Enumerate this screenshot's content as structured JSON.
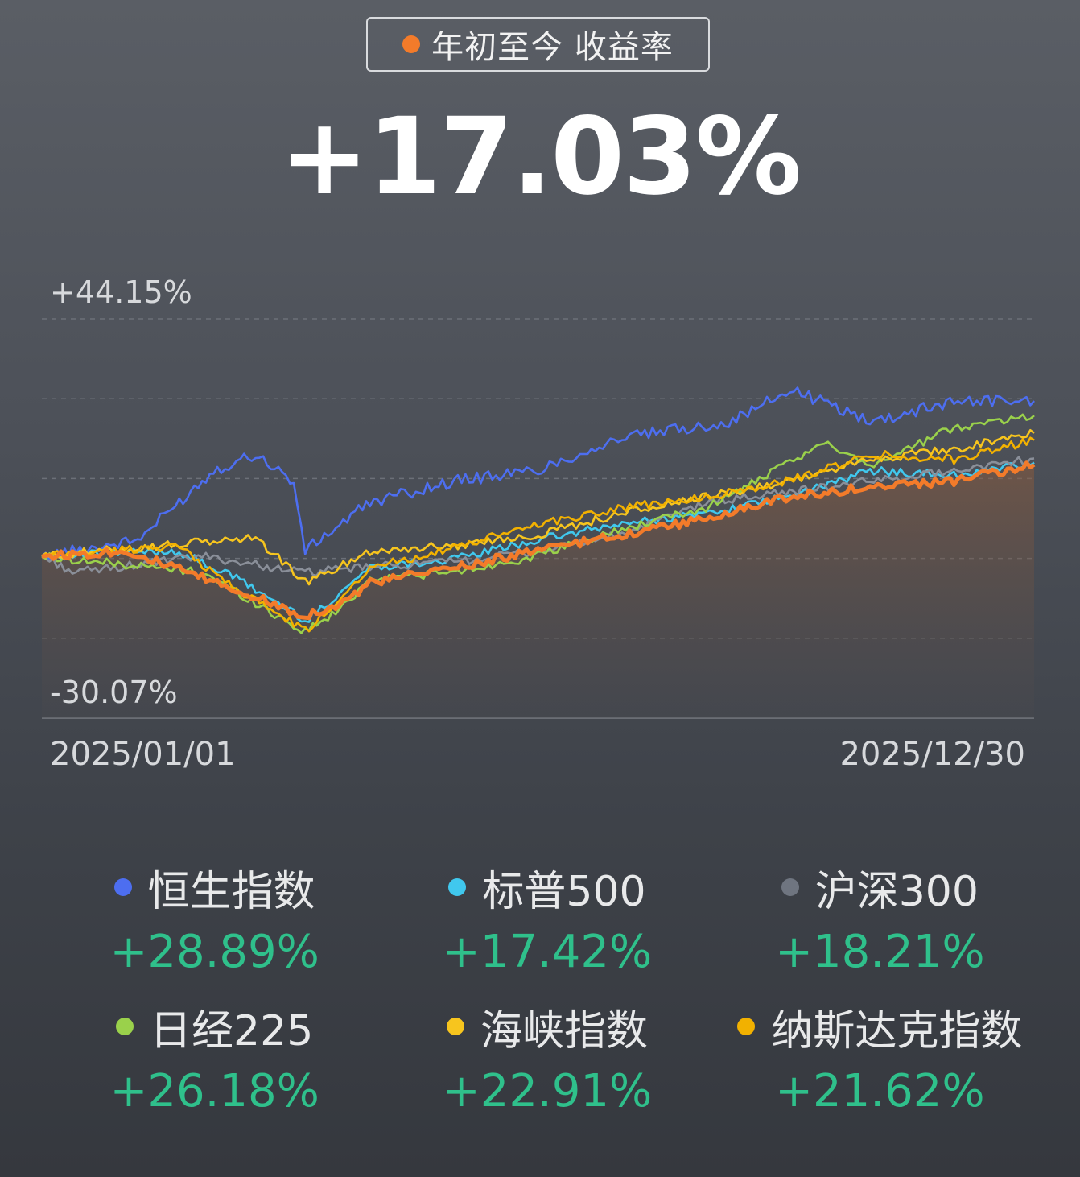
{
  "header": {
    "label": "年初至今 收益率",
    "value": "+17.03%",
    "dot_color": "#f37b2a"
  },
  "chart_data": {
    "type": "line",
    "ylim": [
      -30.07,
      44.15
    ],
    "y_top_label": "+44.15%",
    "y_bottom_label": "-30.07%",
    "x_start_label": "2025/01/01",
    "x_end_label": "2025/12/30",
    "x_range": [
      "2025/01/01",
      "2025/12/30"
    ],
    "grid": "dashed horizontal",
    "series": [
      {
        "name": "恒生指数",
        "color": "#4d6ef0",
        "x": [
          "2025/01/01",
          "2025/02/05",
          "2025/03/05",
          "2025/03/20",
          "2025/04/03",
          "2025/04/07",
          "2025/05/01",
          "2025/06/01",
          "2025/07/01",
          "2025/08/01",
          "2025/09/10",
          "2025/10/02",
          "2025/11/01",
          "2025/12/01",
          "2025/12/30"
        ],
        "values": [
          0.0,
          3.0,
          16.0,
          19.0,
          14.0,
          1.0,
          10.0,
          14.0,
          16.0,
          22.0,
          25.0,
          31.0,
          25.0,
          29.0,
          28.89
        ]
      },
      {
        "name": "标普500",
        "color": "#40c8ee",
        "x": [
          "2025/01/01",
          "2025/02/19",
          "2025/03/13",
          "2025/04/08",
          "2025/05/01",
          "2025/06/01",
          "2025/07/01",
          "2025/08/01",
          "2025/09/01",
          "2025/10/01",
          "2025/11/01",
          "2025/12/01",
          "2025/12/30"
        ],
        "values": [
          0.0,
          1.0,
          -4.0,
          -12.0,
          -2.0,
          -0.5,
          3.0,
          6.0,
          8.0,
          11.0,
          16.0,
          15.0,
          17.42
        ]
      },
      {
        "name": "沪深300",
        "color": "#8a8f99",
        "x": [
          "2025/01/01",
          "2025/01/13",
          "2025/03/01",
          "2025/04/07",
          "2025/05/01",
          "2025/06/01",
          "2025/07/01",
          "2025/08/01",
          "2025/09/01",
          "2025/10/01",
          "2025/11/01",
          "2025/12/01",
          "2025/12/30"
        ],
        "values": [
          0.0,
          -3.0,
          0.0,
          -3.0,
          -2.0,
          -1.0,
          1.0,
          4.0,
          10.0,
          12.0,
          14.0,
          16.0,
          18.21
        ]
      },
      {
        "name": "日经225",
        "color": "#9ad14b",
        "x": [
          "2025/01/01",
          "2025/03/01",
          "2025/04/07",
          "2025/04/20",
          "2025/05/01",
          "2025/06/01",
          "2025/07/01",
          "2025/08/01",
          "2025/09/01",
          "2025/10/15",
          "2025/11/01",
          "2025/12/01",
          "2025/12/30"
        ],
        "values": [
          0.0,
          -3.0,
          -14.0,
          -10.0,
          -4.0,
          -3.0,
          0.0,
          5.0,
          9.0,
          21.0,
          17.0,
          24.0,
          26.18
        ]
      },
      {
        "name": "海峡指数",
        "color": "#f7c51e",
        "x": [
          "2025/01/01",
          "2025/03/20",
          "2025/04/08",
          "2025/05/01",
          "2025/06/01",
          "2025/07/01",
          "2025/08/01",
          "2025/09/01",
          "2025/10/01",
          "2025/11/01",
          "2025/12/01",
          "2025/12/30"
        ],
        "values": [
          0.0,
          3.5,
          -5.0,
          1.0,
          2.0,
          4.0,
          8.0,
          11.0,
          14.0,
          18.0,
          20.0,
          22.91
        ]
      },
      {
        "name": "纳斯达克指数",
        "color": "#f2b100",
        "x": [
          "2025/01/01",
          "2025/02/19",
          "2025/03/13",
          "2025/04/08",
          "2025/05/01",
          "2025/06/01",
          "2025/07/01",
          "2025/08/01",
          "2025/09/01",
          "2025/10/01",
          "2025/11/01",
          "2025/12/01",
          "2025/12/30"
        ],
        "values": [
          0.0,
          2.0,
          -6.0,
          -14.0,
          -2.0,
          1.5,
          6.0,
          9.0,
          11.0,
          14.0,
          19.0,
          18.0,
          21.62
        ]
      },
      {
        "name": "年初至今 收益率",
        "color": "#f37b2a",
        "x": [
          "2025/01/01",
          "2025/02/01",
          "2025/03/01",
          "2025/04/07",
          "2025/04/20",
          "2025/05/01",
          "2025/06/01",
          "2025/07/01",
          "2025/08/01",
          "2025/09/01",
          "2025/10/01",
          "2025/11/01",
          "2025/12/01",
          "2025/12/30"
        ],
        "values": [
          0.0,
          1.0,
          -4.0,
          -11.0,
          -9.0,
          -5.0,
          -2.0,
          1.0,
          4.0,
          7.0,
          11.0,
          13.0,
          14.0,
          17.03
        ]
      }
    ]
  },
  "legend": {
    "items": [
      {
        "name": "恒生指数",
        "value": "+28.89%",
        "color": "#4d6ef0"
      },
      {
        "name": "标普500",
        "value": "+17.42%",
        "color": "#40c8ee"
      },
      {
        "name": "沪深300",
        "value": "+18.21%",
        "color": "#6f7580"
      },
      {
        "name": "日经225",
        "value": "+26.18%",
        "color": "#9ad14b"
      },
      {
        "name": "海峡指数",
        "value": "+22.91%",
        "color": "#f7c51e"
      },
      {
        "name": "纳斯达克指数",
        "value": "+21.62%",
        "color": "#f2b100"
      }
    ]
  }
}
